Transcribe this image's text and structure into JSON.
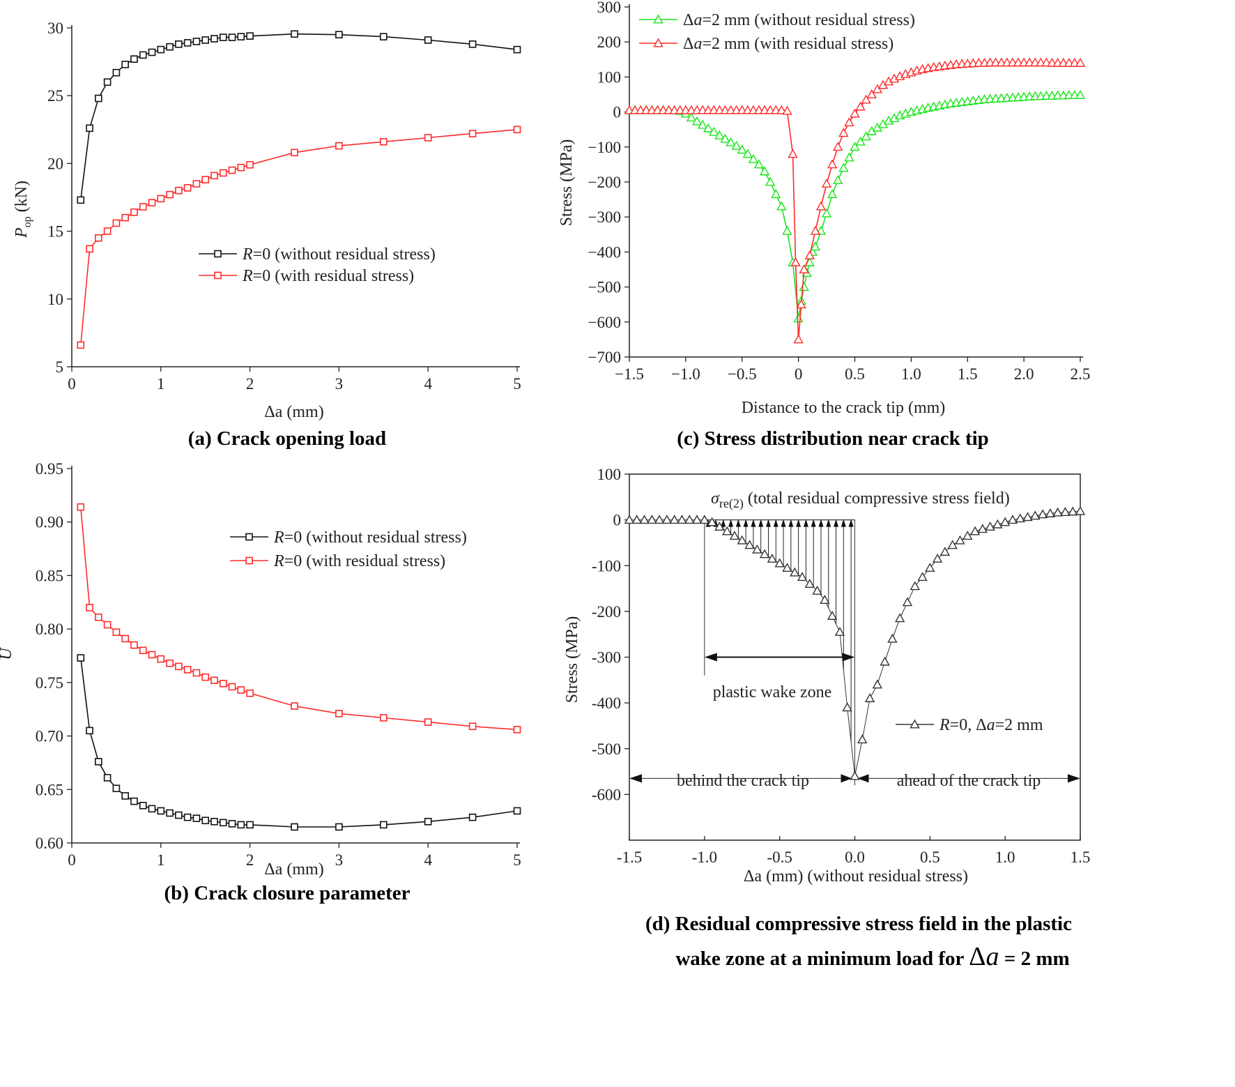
{
  "chart_data": [
    {
      "id": "a",
      "type": "line",
      "caption": "(a)   Crack opening load",
      "xlabel": "Δa (mm)",
      "ylabel": "P_op (kN)",
      "ylabel_main": "P",
      "ylabel_sub": "op",
      "ylabel_unit": " (kN)",
      "xlim": [
        0,
        5
      ],
      "ylim": [
        5,
        30
      ],
      "xticks": [
        0,
        1,
        2,
        3,
        4,
        5
      ],
      "xtick_labels": [
        "0",
        "1",
        "2",
        "3",
        "4",
        "5"
      ],
      "yticks": [
        5,
        10,
        15,
        20,
        25,
        30
      ],
      "ytick_labels": [
        "5",
        "10",
        "15",
        "20",
        "25",
        "30"
      ],
      "legend_position": "center-right",
      "series": [
        {
          "name": "R=0 (without residual stress)",
          "legend_italic": "R",
          "legend_rest": "=0 (without residual stress)",
          "color": "#111111",
          "marker": "square",
          "x": [
            0.1,
            0.2,
            0.3,
            0.4,
            0.5,
            0.6,
            0.7,
            0.8,
            0.9,
            1.0,
            1.1,
            1.2,
            1.3,
            1.4,
            1.5,
            1.6,
            1.7,
            1.8,
            1.9,
            2.0,
            2.5,
            3.0,
            3.5,
            4.0,
            4.5,
            5.0
          ],
          "y": [
            17.3,
            22.6,
            24.8,
            26.0,
            26.7,
            27.3,
            27.7,
            28.0,
            28.2,
            28.4,
            28.6,
            28.8,
            28.9,
            29.0,
            29.1,
            29.2,
            29.3,
            29.3,
            29.35,
            29.4,
            29.55,
            29.5,
            29.35,
            29.1,
            28.8,
            28.4
          ]
        },
        {
          "name": "R=0 (with residual stress)",
          "legend_italic": "R",
          "legend_rest": "=0 (with residual stress)",
          "color": "#ff2a2a",
          "marker": "square",
          "x": [
            0.1,
            0.2,
            0.3,
            0.4,
            0.5,
            0.6,
            0.7,
            0.8,
            0.9,
            1.0,
            1.1,
            1.2,
            1.3,
            1.4,
            1.5,
            1.6,
            1.7,
            1.8,
            1.9,
            2.0,
            2.5,
            3.0,
            3.5,
            4.0,
            4.5,
            5.0
          ],
          "y": [
            6.6,
            13.7,
            14.5,
            15.0,
            15.6,
            16.0,
            16.4,
            16.8,
            17.1,
            17.4,
            17.7,
            18.0,
            18.2,
            18.5,
            18.8,
            19.1,
            19.3,
            19.5,
            19.7,
            19.9,
            20.8,
            21.3,
            21.6,
            21.9,
            22.2,
            22.5
          ]
        }
      ]
    },
    {
      "id": "b",
      "type": "line",
      "caption": "(b)   Crack closure parameter",
      "xlabel": "Δa (mm)",
      "ylabel": "U",
      "xlim": [
        0,
        5
      ],
      "ylim": [
        0.6,
        0.95
      ],
      "xticks": [
        0,
        1,
        2,
        3,
        4,
        5
      ],
      "xtick_labels": [
        "0",
        "1",
        "2",
        "3",
        "4",
        "5"
      ],
      "yticks": [
        0.6,
        0.65,
        0.7,
        0.75,
        0.8,
        0.85,
        0.9,
        0.95
      ],
      "ytick_labels": [
        "0.60",
        "0.65",
        "0.70",
        "0.75",
        "0.80",
        "0.85",
        "0.90",
        "0.95"
      ],
      "legend_position": "top-right",
      "series": [
        {
          "name": "R=0 (without residual stress)",
          "legend_italic": "R",
          "legend_rest": "=0 (without residual stress)",
          "color": "#111111",
          "marker": "square",
          "x": [
            0.1,
            0.2,
            0.3,
            0.4,
            0.5,
            0.6,
            0.7,
            0.8,
            0.9,
            1.0,
            1.1,
            1.2,
            1.3,
            1.4,
            1.5,
            1.6,
            1.7,
            1.8,
            1.9,
            2.0,
            2.5,
            3.0,
            3.5,
            4.0,
            4.5,
            5.0
          ],
          "y": [
            0.773,
            0.705,
            0.676,
            0.661,
            0.651,
            0.644,
            0.639,
            0.635,
            0.632,
            0.63,
            0.628,
            0.626,
            0.624,
            0.623,
            0.621,
            0.62,
            0.619,
            0.618,
            0.617,
            0.617,
            0.615,
            0.615,
            0.617,
            0.62,
            0.624,
            0.63
          ]
        },
        {
          "name": "R=0 (with residual stress)",
          "legend_italic": "R",
          "legend_rest": "=0 (with residual stress)",
          "color": "#ff2a2a",
          "marker": "square",
          "x": [
            0.1,
            0.2,
            0.3,
            0.4,
            0.5,
            0.6,
            0.7,
            0.8,
            0.9,
            1.0,
            1.1,
            1.2,
            1.3,
            1.4,
            1.5,
            1.6,
            1.7,
            1.8,
            1.9,
            2.0,
            2.5,
            3.0,
            3.5,
            4.0,
            4.5,
            5.0
          ],
          "y": [
            0.914,
            0.82,
            0.811,
            0.804,
            0.797,
            0.791,
            0.785,
            0.78,
            0.776,
            0.772,
            0.768,
            0.765,
            0.762,
            0.759,
            0.755,
            0.752,
            0.749,
            0.746,
            0.743,
            0.74,
            0.728,
            0.721,
            0.717,
            0.713,
            0.709,
            0.706
          ]
        }
      ]
    },
    {
      "id": "c",
      "type": "line",
      "caption": "(c)   Stress distribution near crack tip",
      "xlabel": "Distance to the crack tip (mm)",
      "ylabel": "Stress (MPa)",
      "xlim": [
        -1.5,
        2.5
      ],
      "ylim": [
        -700,
        300
      ],
      "xticks": [
        -1.5,
        -1.0,
        -0.5,
        0,
        0.5,
        1.0,
        1.5,
        2.0,
        2.5
      ],
      "xtick_labels": [
        "−1.5",
        "−1.0",
        "−0.5",
        "0",
        "0.5",
        "1.0",
        "1.5",
        "2.0",
        "2.5"
      ],
      "yticks": [
        -700,
        -600,
        -500,
        -400,
        -300,
        -200,
        -100,
        0,
        100,
        200,
        300
      ],
      "ytick_labels": [
        "−700",
        "−600",
        "−500",
        "−400",
        "−300",
        "−200",
        "−100",
        "0",
        "100",
        "200",
        "300"
      ],
      "legend_position": "top-left",
      "series": [
        {
          "name": "Δa=2 mm (without residual stress)",
          "legend_italic": "a",
          "legend_pre": "Δ",
          "legend_rest": "=2 mm (without residual stress)",
          "color": "#19e619",
          "marker": "triangle",
          "x": [
            -1.5,
            -1.45,
            -1.4,
            -1.35,
            -1.3,
            -1.25,
            -1.2,
            -1.15,
            -1.1,
            -1.05,
            -1.0,
            -0.95,
            -0.9,
            -0.85,
            -0.8,
            -0.75,
            -0.7,
            -0.65,
            -0.6,
            -0.55,
            -0.5,
            -0.45,
            -0.4,
            -0.35,
            -0.3,
            -0.25,
            -0.2,
            -0.15,
            -0.1,
            -0.05,
            0.0,
            0.025,
            0.05,
            0.075,
            0.1,
            0.125,
            0.15,
            0.2,
            0.25,
            0.3,
            0.35,
            0.4,
            0.45,
            0.5,
            0.55,
            0.6,
            0.65,
            0.7,
            0.75,
            0.8,
            0.85,
            0.9,
            0.95,
            1.0,
            1.05,
            1.1,
            1.15,
            1.2,
            1.25,
            1.3,
            1.35,
            1.4,
            1.45,
            1.5,
            1.55,
            1.6,
            1.65,
            1.7,
            1.75,
            1.8,
            1.85,
            1.9,
            1.95,
            2.0,
            2.05,
            2.1,
            2.15,
            2.2,
            2.25,
            2.3,
            2.35,
            2.4,
            2.45,
            2.5
          ],
          "y": [
            5,
            5,
            5,
            5,
            5,
            5,
            5,
            5,
            5,
            3,
            -5,
            -16,
            -27,
            -37,
            -47,
            -57,
            -67,
            -77,
            -87,
            -97,
            -108,
            -120,
            -135,
            -150,
            -170,
            -200,
            -235,
            -270,
            -340,
            -430,
            -590,
            -540,
            -500,
            -460,
            -430,
            -400,
            -385,
            -340,
            -290,
            -235,
            -195,
            -160,
            -130,
            -100,
            -85,
            -70,
            -55,
            -45,
            -35,
            -25,
            -18,
            -10,
            -5,
            0,
            4,
            8,
            12,
            15,
            18,
            21,
            24,
            26,
            28,
            30,
            32,
            34,
            36,
            37,
            38,
            39,
            40,
            41,
            42,
            43,
            44,
            45,
            45,
            46,
            46,
            47,
            47,
            48,
            48,
            48
          ]
        },
        {
          "name": "Δa=2 mm (with residual stress)",
          "legend_italic": "a",
          "legend_pre": "Δ",
          "legend_rest": "=2 mm (with residual stress)",
          "color": "#ff2a2a",
          "marker": "triangle",
          "x": [
            -1.5,
            -1.45,
            -1.4,
            -1.35,
            -1.3,
            -1.25,
            -1.2,
            -1.15,
            -1.1,
            -1.05,
            -1.0,
            -0.95,
            -0.9,
            -0.85,
            -0.8,
            -0.75,
            -0.7,
            -0.65,
            -0.6,
            -0.55,
            -0.5,
            -0.45,
            -0.4,
            -0.35,
            -0.3,
            -0.25,
            -0.2,
            -0.15,
            -0.1,
            -0.05,
            -0.025,
            0.0,
            0.025,
            0.05,
            0.1,
            0.15,
            0.2,
            0.25,
            0.3,
            0.35,
            0.4,
            0.45,
            0.5,
            0.55,
            0.6,
            0.65,
            0.7,
            0.75,
            0.8,
            0.85,
            0.9,
            0.95,
            1.0,
            1.05,
            1.1,
            1.15,
            1.2,
            1.25,
            1.3,
            1.35,
            1.4,
            1.45,
            1.5,
            1.55,
            1.6,
            1.65,
            1.7,
            1.75,
            1.8,
            1.85,
            1.9,
            1.95,
            2.0,
            2.05,
            2.1,
            2.15,
            2.2,
            2.25,
            2.3,
            2.35,
            2.4,
            2.45,
            2.5
          ],
          "y": [
            5,
            5,
            5,
            5,
            5,
            5,
            5,
            5,
            5,
            5,
            5,
            5,
            5,
            5,
            5,
            5,
            5,
            5,
            5,
            5,
            5,
            5,
            5,
            5,
            5,
            5,
            5,
            5,
            3,
            -120,
            -430,
            -650,
            -550,
            -450,
            -410,
            -340,
            -270,
            -205,
            -150,
            -100,
            -60,
            -30,
            -5,
            15,
            35,
            50,
            65,
            77,
            87,
            95,
            102,
            108,
            113,
            118,
            122,
            125,
            128,
            130,
            132,
            134,
            136,
            137,
            138,
            139,
            140,
            140,
            141,
            141,
            141,
            141,
            141,
            141,
            141,
            141,
            141,
            141,
            141,
            140,
            140,
            140,
            140,
            140,
            140
          ]
        }
      ]
    },
    {
      "id": "d",
      "type": "line",
      "caption_line1": "(d)   Residual compressive stress field in the plastic",
      "caption_line2_pre": "wake zone at a minimum load for ",
      "caption_line2_delta": "Δ",
      "caption_line2_a": "a",
      "caption_line2_post": " = 2 mm",
      "xlabel": "Δa (mm) (without residual stress)",
      "ylabel": "Stress (MPa)",
      "xlim": [
        -1.5,
        1.5
      ],
      "ylim": [
        -700,
        100
      ],
      "xticks": [
        -1.5,
        -1.0,
        -0.5,
        0.0,
        0.5,
        1.0,
        1.5
      ],
      "xtick_labels": [
        "-1.5",
        "-1.0",
        "-0.5",
        "0.0",
        "0.5",
        "1.0",
        "1.5"
      ],
      "yticks": [
        -600,
        -500,
        -400,
        -300,
        -200,
        -100,
        0,
        100
      ],
      "ytick_labels": [
        "-600",
        "-500",
        "-400",
        "-300",
        "-200",
        "-100",
        "0",
        "100"
      ],
      "legend_position": "center-right",
      "annotations": {
        "sigma_symbol": "σ",
        "sigma_sub": "re(2)",
        "sigma_text": " (total residual compressive stress field)",
        "plastic_wake": "plastic wake zone",
        "behind": "behind the crack tip",
        "ahead": "ahead of the crack tip"
      },
      "wake_arrows_x": [
        -0.975,
        -0.925,
        -0.875,
        -0.825,
        -0.775,
        -0.725,
        -0.675,
        -0.625,
        -0.575,
        -0.525,
        -0.475,
        -0.425,
        -0.375,
        -0.325,
        -0.275,
        -0.225,
        -0.175,
        -0.125,
        -0.075,
        -0.025
      ],
      "series": [
        {
          "name": "R=0, Δa=2 mm",
          "legend_italic": "R",
          "legend_mid": "=0, Δ",
          "legend_italic2": "a",
          "legend_rest": "=2 mm",
          "color": "#333333",
          "marker": "triangle",
          "x": [
            -1.5,
            -1.45,
            -1.4,
            -1.35,
            -1.3,
            -1.25,
            -1.2,
            -1.15,
            -1.1,
            -1.05,
            -1.0,
            -0.95,
            -0.9,
            -0.85,
            -0.8,
            -0.75,
            -0.7,
            -0.65,
            -0.6,
            -0.55,
            -0.5,
            -0.45,
            -0.4,
            -0.35,
            -0.3,
            -0.25,
            -0.2,
            -0.15,
            -0.1,
            -0.05,
            0.0,
            0.05,
            0.1,
            0.15,
            0.2,
            0.25,
            0.3,
            0.35,
            0.4,
            0.45,
            0.5,
            0.55,
            0.6,
            0.65,
            0.7,
            0.75,
            0.8,
            0.85,
            0.9,
            0.95,
            1.0,
            1.05,
            1.1,
            1.15,
            1.2,
            1.25,
            1.3,
            1.35,
            1.4,
            1.45,
            1.5
          ],
          "y": [
            0,
            0,
            0,
            0,
            0,
            0,
            0,
            0,
            0,
            0,
            0,
            -5,
            -15,
            -25,
            -35,
            -45,
            -55,
            -65,
            -75,
            -85,
            -95,
            -105,
            -115,
            -125,
            -140,
            -155,
            -175,
            -210,
            -245,
            -410,
            -560,
            -480,
            -390,
            -360,
            -310,
            -260,
            -215,
            -180,
            -145,
            -125,
            -105,
            -85,
            -70,
            -55,
            -45,
            -35,
            -25,
            -20,
            -15,
            -10,
            -5,
            0,
            3,
            6,
            9,
            12,
            14,
            16,
            17,
            18,
            19
          ]
        }
      ]
    }
  ]
}
